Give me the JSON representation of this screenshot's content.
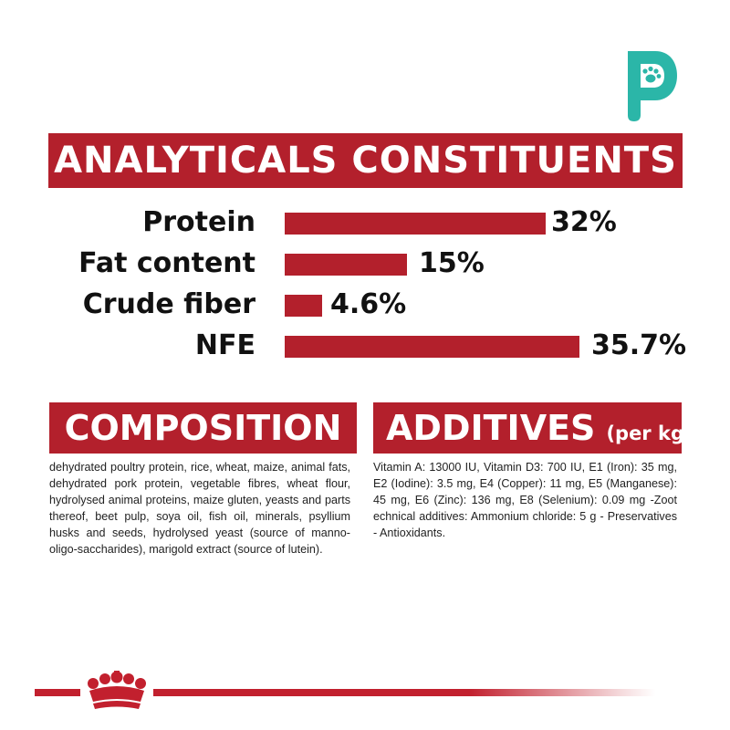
{
  "brand_color": "#b3202c",
  "logo": {
    "icon": "paw-icon",
    "color": "#2bb6a8"
  },
  "analytics": {
    "title": "ANALYTICALS CONSTITUENTS",
    "rows": [
      {
        "label": "Protein",
        "value": "32%",
        "percent": 32
      },
      {
        "label": "Fat content",
        "value": "15%",
        "percent": 15
      },
      {
        "label": "Crude fiber",
        "value": "4.6%",
        "percent": 4.6
      },
      {
        "label": "NFE",
        "value": "35.7%",
        "percent": 35.7
      }
    ]
  },
  "composition": {
    "title": "COMPOSITION",
    "text": "dehydrated poultry protein, rice, wheat, maize, animal fats, dehydrated pork protein, vegetable fibres, wheat flour, hydrolysed animal proteins, maize gluten, yeasts and parts thereof, beet pulp, soya oil, fish oil, minerals, psyllium husks and seeds, hydrolysed yeast (source of manno-oligo-saccharides), marigold extract (source of lutein)."
  },
  "additives": {
    "title": "ADDITIVES",
    "subtitle": "(per kg)",
    "text": "Vitamin A: 13000 IU, Vitamin D3: 700 IU, E1 (Iron): 35 mg, E2 (Iodine): 3.5 mg, E4 (Copper): 11 mg, E5 (Manganese): 45 mg, E6 (Zinc): 136 mg, E8 (Selenium): 0.09 mg -Zoot echnical additives: Ammonium chloride: 5 g - Preservatives - Antioxidants."
  },
  "footer": {
    "icon": "crown-icon"
  }
}
